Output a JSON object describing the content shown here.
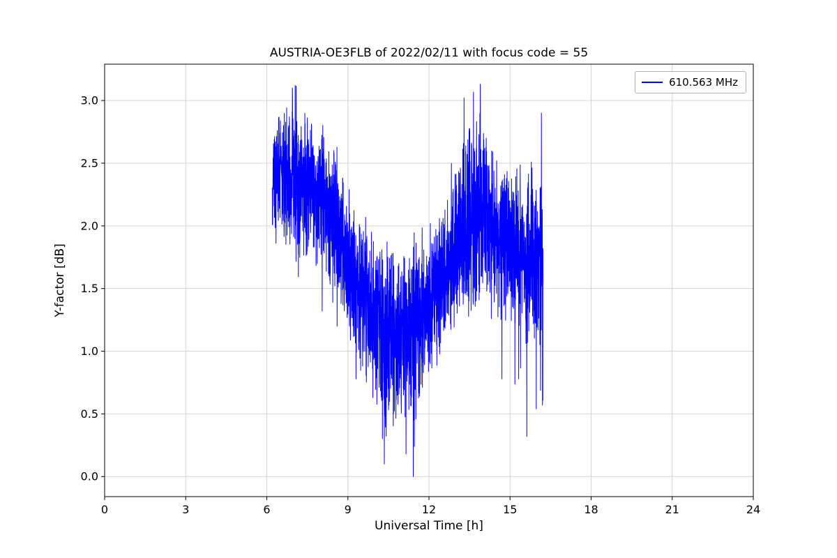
{
  "chart_data": {
    "type": "line",
    "title": "AUSTRIA-OE3FLB of 2022/02/11 with focus code = 55",
    "xlabel": "Universal Time [h]",
    "ylabel": "Y-factor [dB]",
    "xlim": [
      0,
      24
    ],
    "ylim": [
      -0.16,
      3.29
    ],
    "xticks": [
      0,
      3,
      6,
      9,
      12,
      15,
      18,
      21,
      24
    ],
    "xtick_labels": [
      "0",
      "3",
      "6",
      "9",
      "12",
      "15",
      "18",
      "21",
      "24"
    ],
    "yticks": [
      0.0,
      0.5,
      1.0,
      1.5,
      2.0,
      2.5,
      3.0
    ],
    "ytick_labels": [
      "0.0",
      "0.5",
      "1.0",
      "1.5",
      "2.0",
      "2.5",
      "3.0"
    ],
    "grid": true,
    "grid_color": "#d3d3d3",
    "legend": {
      "position": "upper right",
      "entries": [
        {
          "label": "610.563 MHz",
          "color": "#0000ff"
        }
      ]
    },
    "series": [
      {
        "name": "610.563 MHz",
        "color": "#0000ff",
        "x_start": 6.2,
        "x_end": 16.22,
        "points_per_hour": 250,
        "seed": 20220211,
        "spike_prob": 0.03,
        "envelope": {
          "x": [
            6.2,
            6.5,
            7.0,
            7.5,
            8.0,
            8.5,
            9.0,
            9.5,
            10.0,
            10.5,
            11.0,
            11.5,
            12.0,
            12.5,
            13.0,
            13.5,
            14.0,
            14.5,
            15.0,
            15.5,
            16.0,
            16.22
          ],
          "mean": [
            2.3,
            2.4,
            2.4,
            2.3,
            2.2,
            2.05,
            1.7,
            1.45,
            1.22,
            1.1,
            1.15,
            1.2,
            1.35,
            1.55,
            1.8,
            2.0,
            2.1,
            1.95,
            1.85,
            1.75,
            1.7,
            1.7
          ],
          "dev": [
            0.22,
            0.28,
            0.33,
            0.33,
            0.33,
            0.3,
            0.32,
            0.34,
            0.36,
            0.38,
            0.36,
            0.36,
            0.3,
            0.28,
            0.36,
            0.4,
            0.4,
            0.33,
            0.36,
            0.4,
            0.4,
            0.38
          ],
          "min": [
            1.9,
            1.8,
            1.58,
            1.5,
            1.3,
            1.2,
            0.78,
            0.6,
            0.3,
            0.05,
            0.15,
            0.0,
            0.55,
            0.9,
            0.95,
            1.2,
            1.4,
            0.78,
            0.9,
            0.32,
            0.55,
            0.57
          ],
          "max": [
            2.75,
            3.0,
            3.13,
            3.05,
            2.95,
            2.7,
            2.35,
            2.1,
            2.0,
            1.9,
            1.95,
            1.95,
            2.05,
            2.1,
            3.02,
            3.05,
            3.13,
            2.6,
            2.62,
            2.65,
            2.62,
            2.9
          ]
        },
        "anchors": [
          [
            6.2,
            2.3
          ],
          [
            6.95,
            3.1
          ],
          [
            7.05,
            3.12
          ],
          [
            8.05,
            1.32
          ],
          [
            8.6,
            1.2
          ],
          [
            9.3,
            0.78
          ],
          [
            10.35,
            0.1
          ],
          [
            11.15,
            0.18
          ],
          [
            11.42,
            0.0
          ],
          [
            12.05,
            2.02
          ],
          [
            13.3,
            3.02
          ],
          [
            13.9,
            3.13
          ],
          [
            14.7,
            0.78
          ],
          [
            15.62,
            0.32
          ],
          [
            16.16,
            2.9
          ],
          [
            16.2,
            0.57
          ]
        ],
        "y_min_observed": 0.0,
        "y_max_observed": 3.13
      }
    ]
  }
}
